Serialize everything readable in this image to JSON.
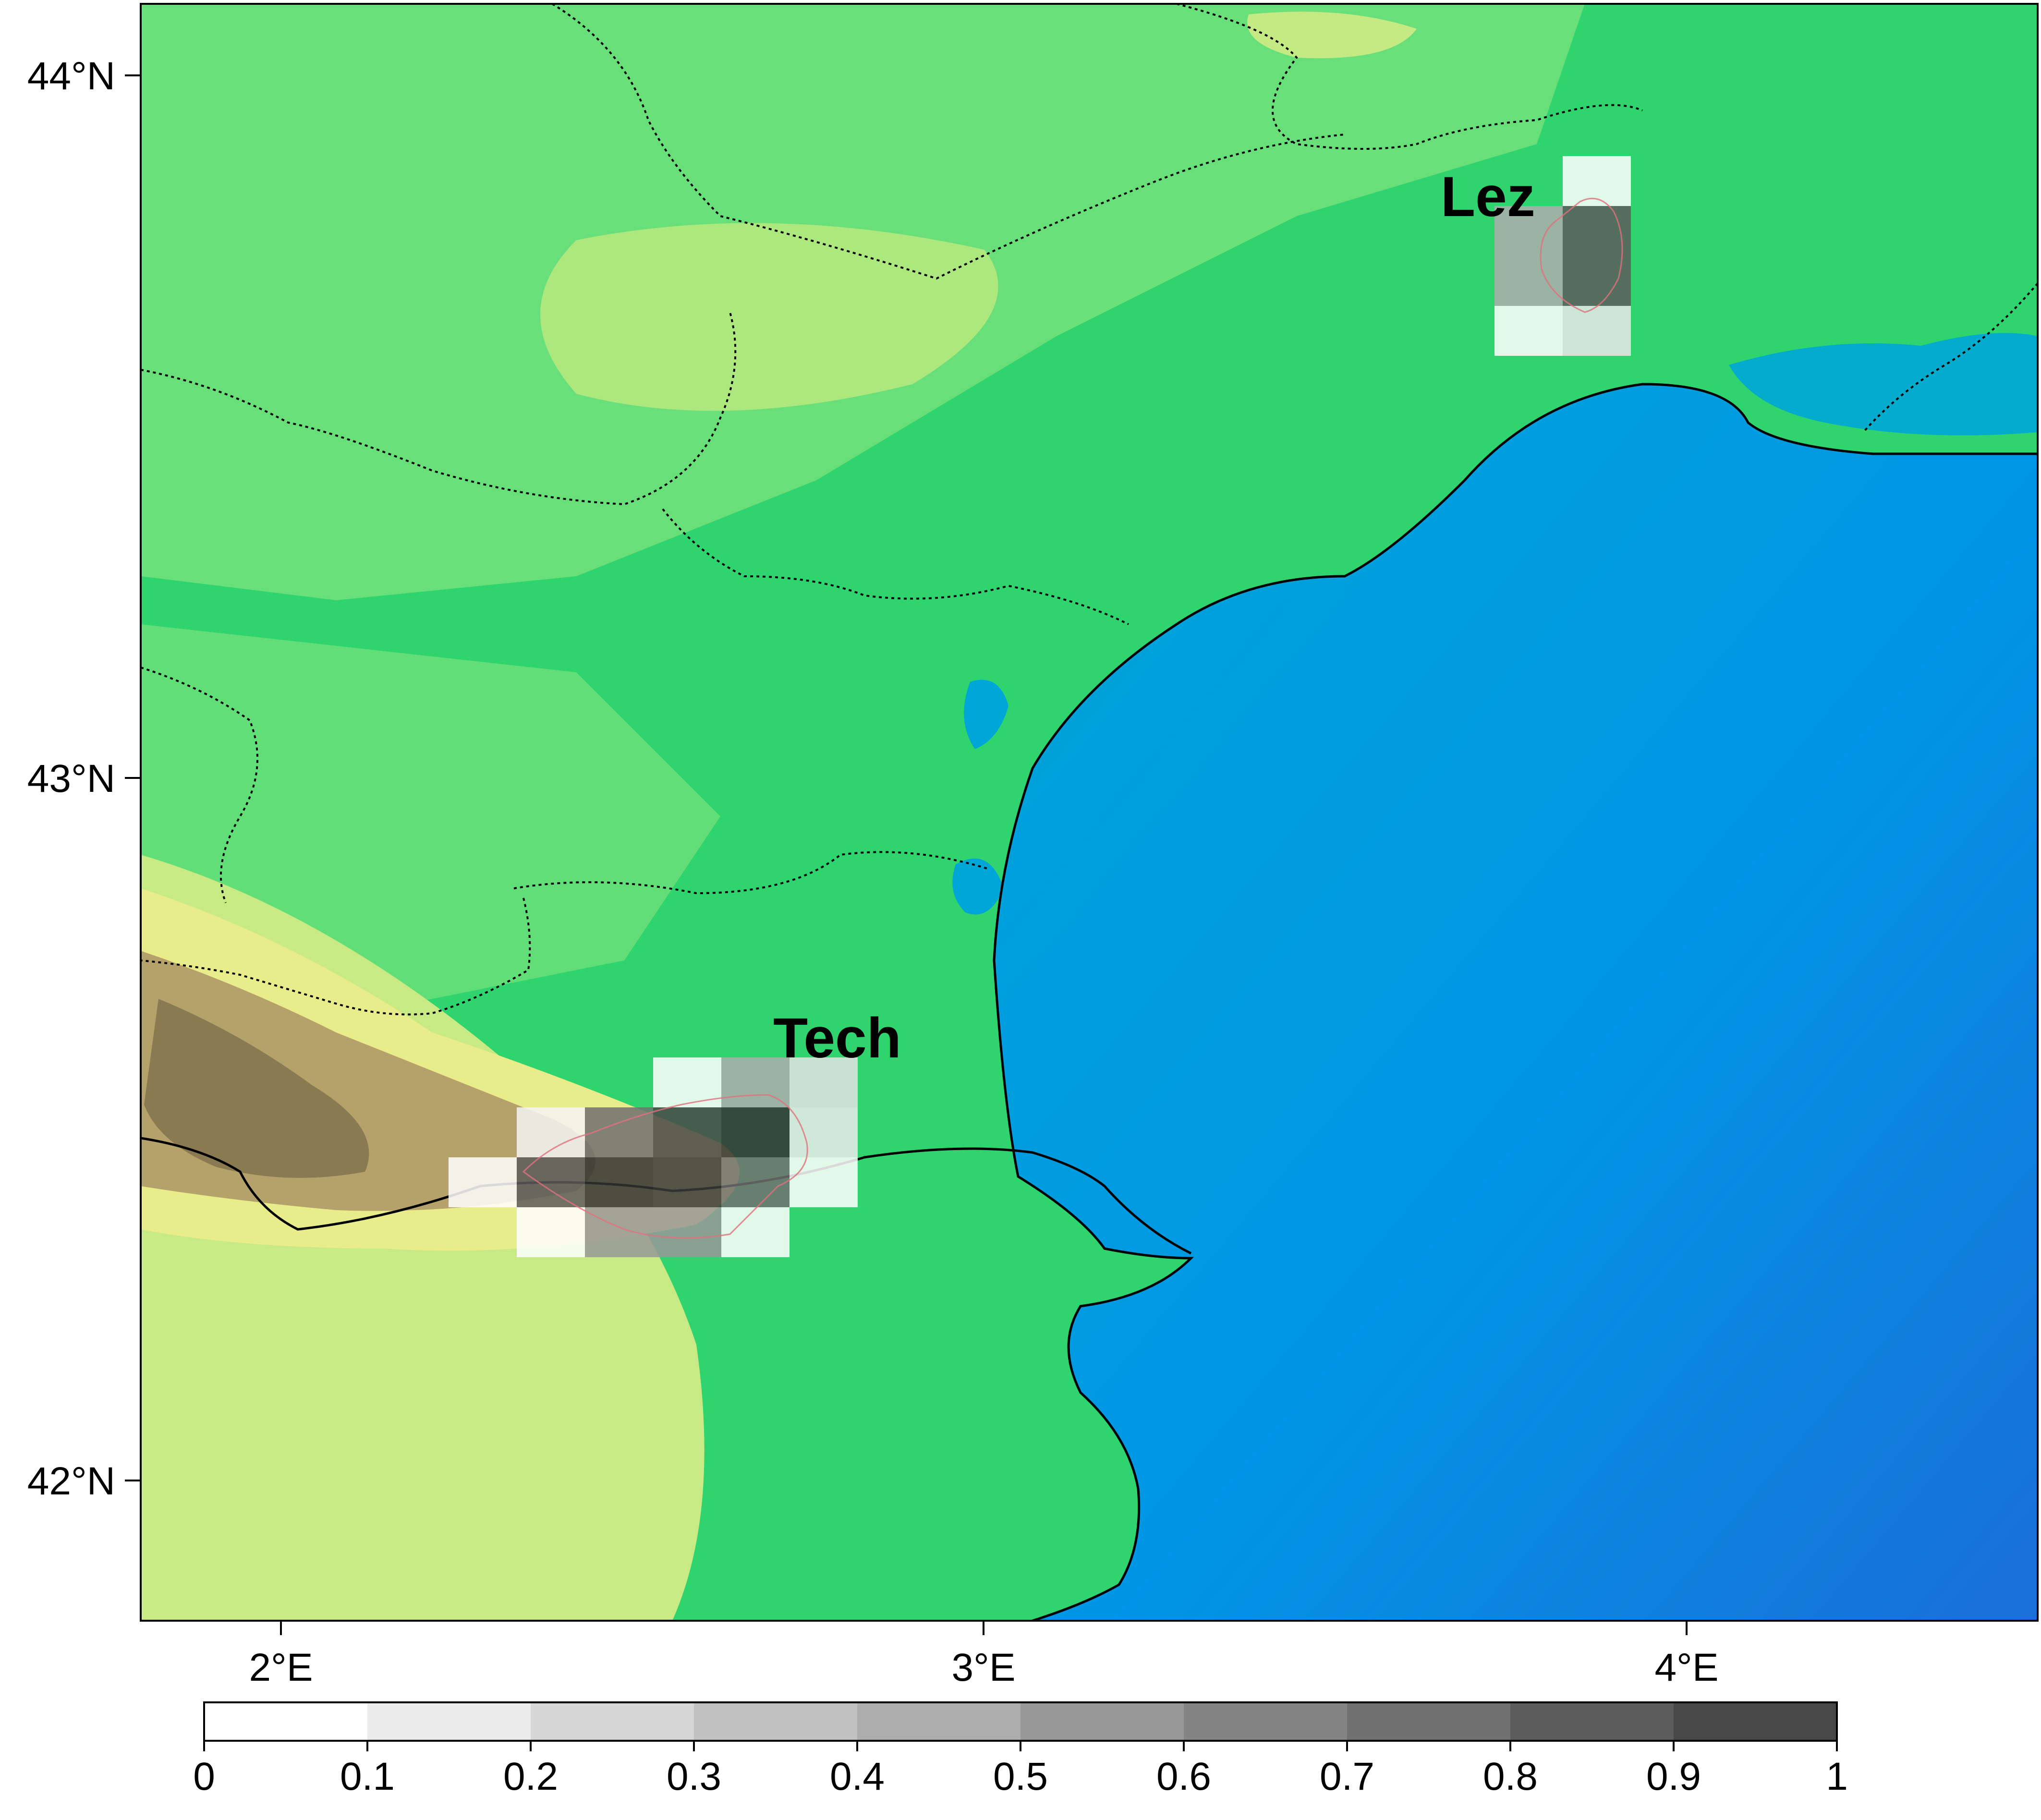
{
  "map": {
    "lat_labels": [
      "44°N",
      "43°N",
      "42°N"
    ],
    "lon_labels": [
      "2°E",
      "3°E",
      "4°E"
    ],
    "basins": [
      {
        "name": "Tech"
      },
      {
        "name": "Lez"
      }
    ],
    "terrain_colors": {
      "sea_deep": "#1a6fd6",
      "sea": "#00a4d8",
      "lowland": "#2fd46e",
      "hills": "#6fe07a",
      "uplands": "#e8ec8a",
      "mountains": "#8a7a52"
    }
  },
  "colorbar": {
    "ticks": [
      "0",
      "0.1",
      "0.2",
      "0.3",
      "0.4",
      "0.5",
      "0.6",
      "0.7",
      "0.8",
      "0.9",
      "1"
    ],
    "colors": [
      "#ffffff",
      "#ebebeb",
      "#d6d6d6",
      "#c1c1c1",
      "#adadad",
      "#989898",
      "#848484",
      "#707070",
      "#5c5c5c",
      "#484848"
    ]
  }
}
